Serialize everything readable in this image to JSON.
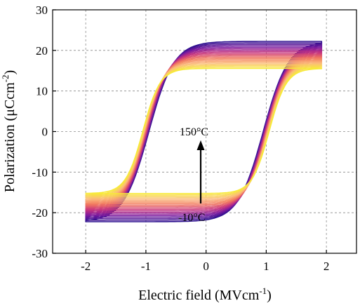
{
  "chart_data": {
    "type": "line",
    "xlabel_main": "Electric field (MVcm",
    "xlabel_sup": "-1",
    "xlabel_end": ")",
    "ylabel_main": "Polarization (μCcm",
    "ylabel_sup": "-2",
    "ylabel_end": ")",
    "xlim": [
      -2.55,
      2.5
    ],
    "ylim": [
      -30,
      30
    ],
    "xticks": [
      -2,
      -1,
      0,
      1,
      2
    ],
    "yticks": [
      -30,
      -20,
      -10,
      0,
      10,
      20,
      30
    ],
    "xtick_labels": [
      "-2",
      "-1",
      "0",
      "1",
      "2"
    ],
    "ytick_labels": [
      "-30",
      "-20",
      "-10",
      "0",
      "10",
      "20",
      "30"
    ],
    "grid": true,
    "annotations": {
      "top": "150°C",
      "bottom": "-10°C"
    },
    "series_count": 20,
    "temperature_range": [
      -10,
      150
    ],
    "e_range": [
      -2,
      1.92
    ],
    "loop_at_minus10C": {
      "p_max": 21.8,
      "p_min": -21.8,
      "coercive_field": 0.95,
      "slope": 2.4
    },
    "loop_at_150C": {
      "p_max": 15.5,
      "p_min": -15.2,
      "coercive_field": 1.05,
      "slope": 3.5
    },
    "color_map": [
      "#2b0f8e",
      "#7a1aa0",
      "#c8347e",
      "#f2795f",
      "#fbbc7c",
      "#f7ea38"
    ]
  }
}
